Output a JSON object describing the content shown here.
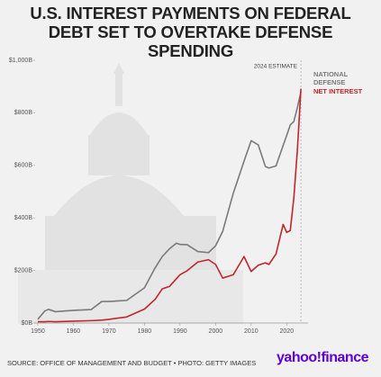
{
  "chart_data": {
    "type": "line",
    "title": "U.S. INTEREST PAYMENTS ON FEDERAL DEBT SET TO OVERTAKE DEFENSE SPENDING",
    "annotation": "2024 ESTIMATE",
    "source": "SOURCE: OFFICE OF MANAGEMENT AND BUDGET • PHOTO: GETTY IMAGES",
    "logo": "yahoo!finance",
    "x": [
      1950,
      1952,
      1953,
      1955,
      1960,
      1965,
      1968,
      1970,
      1975,
      1980,
      1983,
      1985,
      1987,
      1989,
      1990,
      1992,
      1995,
      1998,
      2000,
      2002,
      2005,
      2008,
      2010,
      2012,
      2014,
      2015,
      2017,
      2019,
      2020,
      2021,
      2022,
      2023,
      2024
    ],
    "series": [
      {
        "name": "NATIONAL DEFENSE",
        "color": "#7a7a7a",
        "values": [
          14,
          46,
          52,
          43,
          48,
          51,
          82,
          82,
          86,
          134,
          210,
          253,
          282,
          304,
          299,
          298,
          272,
          268,
          294,
          349,
          495,
          616,
          694,
          678,
          596,
          590,
          598,
          676,
          714,
          754,
          767,
          820,
          880
        ]
      },
      {
        "name": "NET INTEREST",
        "color": "#c0262c",
        "values": [
          5,
          5,
          6,
          5,
          7,
          9,
          11,
          14,
          23,
          53,
          90,
          130,
          139,
          169,
          184,
          199,
          232,
          241,
          223,
          171,
          184,
          253,
          196,
          220,
          229,
          223,
          263,
          375,
          345,
          352,
          475,
          658,
          892
        ]
      }
    ],
    "xlim": [
      1949,
      2026
    ],
    "xticks": [
      1950,
      1960,
      1970,
      1980,
      1990,
      2000,
      2010,
      2020
    ],
    "ylim": [
      0,
      1000
    ],
    "yticks": [
      {
        "value": 0,
        "label": "$0B"
      },
      {
        "value": 200,
        "label": "$200B"
      },
      {
        "value": 400,
        "label": "$400B"
      },
      {
        "value": 600,
        "label": "$600B"
      },
      {
        "value": 800,
        "label": "$800B"
      },
      {
        "value": 1000,
        "label": "$1,000B"
      }
    ],
    "grid": false
  }
}
